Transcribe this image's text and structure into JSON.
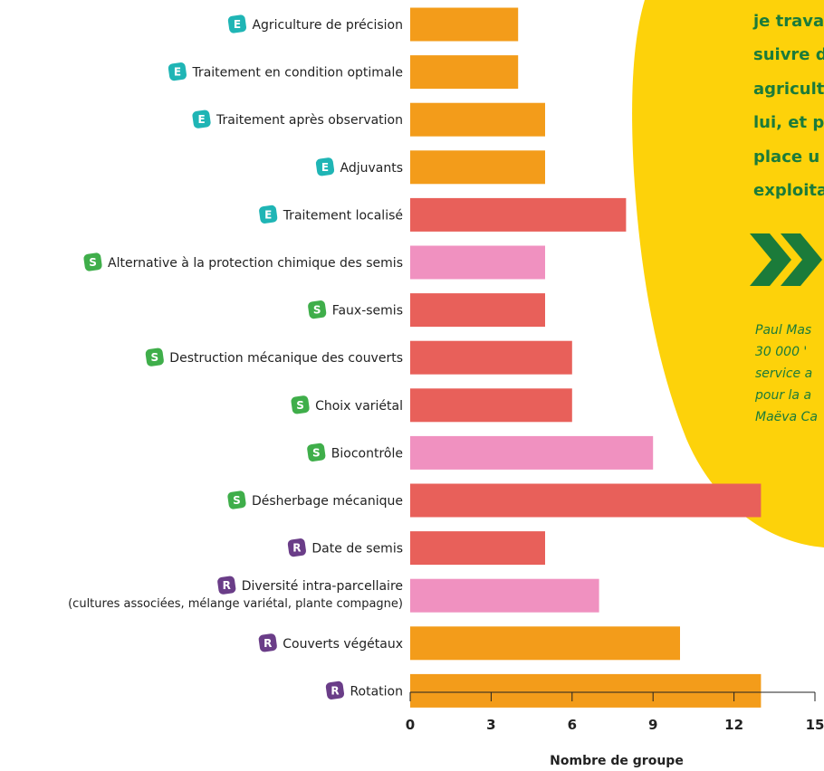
{
  "chart_data": {
    "type": "bar",
    "orientation": "horizontal",
    "categories": [
      {
        "label": "Agriculture de précision",
        "badge": "E"
      },
      {
        "label": "Traitement en condition optimale",
        "badge": "E"
      },
      {
        "label": "Traitement après observation",
        "badge": "E"
      },
      {
        "label": "Adjuvants",
        "badge": "E"
      },
      {
        "label": "Traitement localisé",
        "badge": "E"
      },
      {
        "label": "Alternative à la protection chimique des semis",
        "badge": "S"
      },
      {
        "label": "Faux-semis",
        "badge": "S"
      },
      {
        "label": "Destruction mécanique des couverts",
        "badge": "S"
      },
      {
        "label": "Choix variétal",
        "badge": "S"
      },
      {
        "label": "Biocontrôle",
        "badge": "S"
      },
      {
        "label": "Désherbage mécanique",
        "badge": "S"
      },
      {
        "label": "Date de semis",
        "badge": "R"
      },
      {
        "label": "Diversité intra-parcellaire",
        "label2": "(cultures associées, mélange variétal, plante compagne)",
        "badge": "R"
      },
      {
        "label": "Couverts végétaux",
        "badge": "R"
      },
      {
        "label": "Rotation",
        "badge": "R"
      }
    ],
    "values": [
      4,
      4,
      5,
      5,
      8,
      5,
      5,
      6,
      6,
      9,
      13,
      5,
      7,
      10,
      13
    ],
    "bar_colors": [
      "#f39c1a",
      "#f39c1a",
      "#f39c1a",
      "#f39c1a",
      "#e8605a",
      "#f091c0",
      "#e8605a",
      "#e8605a",
      "#e8605a",
      "#f091c0",
      "#e8605a",
      "#e8605a",
      "#f091c0",
      "#f39c1a",
      "#f39c1a"
    ],
    "xlim": [
      0,
      15
    ],
    "xticks": [
      0,
      3,
      6,
      9,
      12,
      15
    ],
    "xlabel": "Nombre de groupe",
    "title": "",
    "grid": false,
    "badge_colors": {
      "E": "#1fb5b5",
      "S": "#3fae4a",
      "R": "#6a3d88"
    }
  },
  "sidebar": {
    "background": "#fdd20a",
    "quote_lines": [
      "je trava",
      "suivre d",
      "agricult",
      "lui, et p",
      "place u",
      "exploita"
    ],
    "chevron_icon": "double-chevron-right-icon",
    "caption_lines": [
      "Paul Mas",
      "30 000 '",
      "service a",
      "pour la a",
      "Maëva Ca"
    ]
  }
}
